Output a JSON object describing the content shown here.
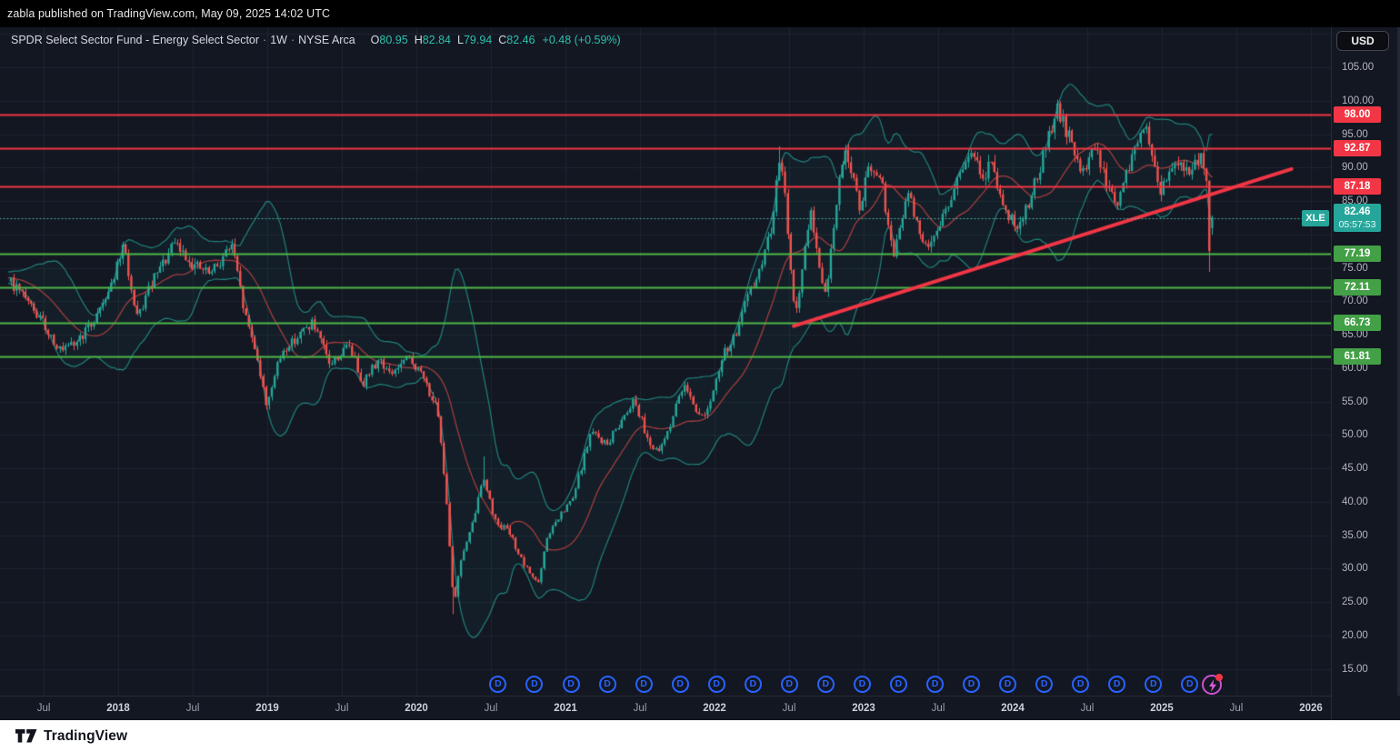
{
  "header": {
    "text": "zabla published on TradingView.com, May 09, 2025 14:02 UTC"
  },
  "legend": {
    "title": "SPDR Select Sector Fund - Energy Select Sector",
    "sep": "·",
    "interval": "1W",
    "exchange": "NYSE Arca",
    "ohlc": [
      {
        "name": "open",
        "k": "O",
        "v": "80.95"
      },
      {
        "name": "high",
        "k": "H",
        "v": "82.84"
      },
      {
        "name": "low",
        "k": "L",
        "v": "79.94"
      },
      {
        "name": "close",
        "k": "C",
        "v": "82.46"
      }
    ],
    "change": "+0.48 (+0.59%)"
  },
  "price_axis": {
    "currency": "USD",
    "ticks": [
      105,
      100,
      95,
      90,
      85,
      75,
      70,
      65,
      60,
      55,
      50,
      45,
      40,
      35,
      30,
      25,
      20,
      15
    ],
    "levels": [
      {
        "value": "98.00",
        "num": 98.0,
        "kind": "resistance"
      },
      {
        "value": "92.87",
        "num": 92.87,
        "kind": "resistance"
      },
      {
        "value": "87.18",
        "num": 87.18,
        "kind": "resistance"
      },
      {
        "value": "77.19",
        "num": 77.19,
        "kind": "support"
      },
      {
        "value": "72.11",
        "num": 72.11,
        "kind": "support"
      },
      {
        "value": "66.73",
        "num": 66.73,
        "kind": "support"
      },
      {
        "value": "61.81",
        "num": 61.81,
        "kind": "support"
      }
    ],
    "last": {
      "symbol": "XLE",
      "price": "82.46",
      "countdown": "05:57:53"
    }
  },
  "time_axis": {
    "labels": [
      {
        "t": 2017.5,
        "label": "Jul"
      },
      {
        "t": 2018.0,
        "label": "2018"
      },
      {
        "t": 2018.5,
        "label": "Jul"
      },
      {
        "t": 2019.0,
        "label": "2019"
      },
      {
        "t": 2019.5,
        "label": "Jul"
      },
      {
        "t": 2020.0,
        "label": "2020"
      },
      {
        "t": 2020.5,
        "label": "Jul"
      },
      {
        "t": 2021.0,
        "label": "2021"
      },
      {
        "t": 2021.5,
        "label": "Jul"
      },
      {
        "t": 2022.0,
        "label": "2022"
      },
      {
        "t": 2022.5,
        "label": "Jul"
      },
      {
        "t": 2023.0,
        "label": "2023"
      },
      {
        "t": 2023.5,
        "label": "Jul"
      },
      {
        "t": 2024.0,
        "label": "2024"
      },
      {
        "t": 2024.5,
        "label": "Jul"
      },
      {
        "t": 2025.0,
        "label": "2025"
      },
      {
        "t": 2025.5,
        "label": "Jul"
      },
      {
        "t": 2026.0,
        "label": "2026"
      }
    ]
  },
  "footer": {
    "brand": "TradingView"
  },
  "colors": {
    "up": "#26a69a",
    "down": "#ef5350",
    "resistance": "#f23645",
    "support": "#4fb748",
    "chip_resistance": "#f23645",
    "chip_support": "#43a047",
    "chip_last": "#26a69a",
    "trendline": "#f23645",
    "bb_band": "rgba(38,166,154,0.75)",
    "bb_fill": "rgba(38,166,154,0.055)",
    "bb_basis": "rgba(178,64,64,0.9)",
    "last_price_line": "rgba(86,204,190,0.9)",
    "grid": "rgba(42,46,57,0.55)",
    "dividend": "#2962ff",
    "flash": "#cf4fd4"
  },
  "chart_data": {
    "type": "candlestick",
    "symbol": "XLE",
    "title": "SPDR Select Sector Fund - Energy Select Sector",
    "interval": "1W",
    "exchange": "NYSE Arca",
    "currency": "USD",
    "last_candle": {
      "o": 80.95,
      "h": 82.84,
      "l": 79.94,
      "c": 82.46,
      "change": 0.48,
      "change_pct": 0.59
    },
    "xlim_years": [
      2017.207,
      2026.134
    ],
    "ylim": [
      11,
      111
    ],
    "y_tick_step": 5,
    "grid": true,
    "weeks": 420,
    "t_start": 2017.28,
    "price_path_keyframes": [
      [
        2016.9,
        74.0
      ],
      [
        2017.28,
        72.8
      ],
      [
        2017.4,
        69.5
      ],
      [
        2017.5,
        66.5
      ],
      [
        2017.62,
        62.3
      ],
      [
        2017.7,
        63.5
      ],
      [
        2017.82,
        66.5
      ],
      [
        2017.95,
        72.5
      ],
      [
        2018.04,
        78.3
      ],
      [
        2018.12,
        67.0
      ],
      [
        2018.22,
        72.5
      ],
      [
        2018.38,
        78.6
      ],
      [
        2018.5,
        75.5
      ],
      [
        2018.62,
        74.0
      ],
      [
        2018.76,
        78.5
      ],
      [
        2018.85,
        68.0
      ],
      [
        2018.93,
        62.0
      ],
      [
        2018.99,
        54.5
      ],
      [
        2019.1,
        62.5
      ],
      [
        2019.3,
        66.8
      ],
      [
        2019.42,
        60.5
      ],
      [
        2019.55,
        63.5
      ],
      [
        2019.64,
        57.8
      ],
      [
        2019.75,
        61.5
      ],
      [
        2019.82,
        59.0
      ],
      [
        2019.95,
        61.5
      ],
      [
        2020.05,
        58.5
      ],
      [
        2020.14,
        53.5
      ],
      [
        2020.2,
        41.0
      ],
      [
        2020.25,
        24.5
      ],
      [
        2020.3,
        31.5
      ],
      [
        2020.37,
        36.0
      ],
      [
        2020.45,
        44.0
      ],
      [
        2020.52,
        37.5
      ],
      [
        2020.62,
        35.5
      ],
      [
        2020.72,
        30.5
      ],
      [
        2020.82,
        27.8
      ],
      [
        2020.88,
        35.0
      ],
      [
        2020.97,
        38.0
      ],
      [
        2021.05,
        40.5
      ],
      [
        2021.17,
        50.5
      ],
      [
        2021.28,
        48.5
      ],
      [
        2021.38,
        52.5
      ],
      [
        2021.46,
        55.5
      ],
      [
        2021.55,
        49.5
      ],
      [
        2021.62,
        47.0
      ],
      [
        2021.7,
        51.5
      ],
      [
        2021.8,
        58.0
      ],
      [
        2021.9,
        52.5
      ],
      [
        2021.97,
        54.5
      ],
      [
        2022.06,
        62.0
      ],
      [
        2022.15,
        65.5
      ],
      [
        2022.22,
        70.5
      ],
      [
        2022.3,
        74.5
      ],
      [
        2022.37,
        80.0
      ],
      [
        2022.44,
        91.5
      ],
      [
        2022.48,
        84.0
      ],
      [
        2022.54,
        67.0
      ],
      [
        2022.6,
        76.5
      ],
      [
        2022.65,
        83.5
      ],
      [
        2022.7,
        75.5
      ],
      [
        2022.74,
        70.5
      ],
      [
        2022.8,
        81.0
      ],
      [
        2022.87,
        93.5
      ],
      [
        2022.92,
        89.0
      ],
      [
        2022.97,
        84.0
      ],
      [
        2023.04,
        90.0
      ],
      [
        2023.12,
        87.5
      ],
      [
        2023.2,
        76.5
      ],
      [
        2023.3,
        86.5
      ],
      [
        2023.4,
        77.8
      ],
      [
        2023.5,
        81.0
      ],
      [
        2023.6,
        86.5
      ],
      [
        2023.72,
        92.5
      ],
      [
        2023.8,
        88.0
      ],
      [
        2023.85,
        91.0
      ],
      [
        2023.95,
        83.5
      ],
      [
        2024.02,
        81.0
      ],
      [
        2024.12,
        85.5
      ],
      [
        2024.22,
        93.0
      ],
      [
        2024.3,
        98.5
      ],
      [
        2024.38,
        94.5
      ],
      [
        2024.46,
        88.5
      ],
      [
        2024.54,
        94.0
      ],
      [
        2024.62,
        88.0
      ],
      [
        2024.7,
        84.5
      ],
      [
        2024.8,
        91.5
      ],
      [
        2024.88,
        97.0
      ],
      [
        2024.94,
        90.5
      ],
      [
        2024.99,
        86.5
      ],
      [
        2025.05,
        90.0
      ],
      [
        2025.12,
        91.5
      ],
      [
        2025.19,
        89.0
      ],
      [
        2025.26,
        92.0
      ],
      [
        2025.298,
        89.0
      ],
      [
        2025.317,
        77.8
      ],
      [
        2025.337,
        82.46
      ]
    ],
    "wick_overrides": [
      {
        "t": 2018.99,
        "low": 53.8
      },
      {
        "t": 2020.25,
        "low": 23.2
      },
      {
        "t": 2020.45,
        "high": 46.8
      },
      {
        "t": 2022.44,
        "high": 93.2
      },
      {
        "t": 2024.3,
        "high": 99.6
      },
      {
        "t": 2025.317,
        "low": 74.4
      }
    ],
    "indicator": {
      "name": "Bollinger Bands",
      "length": 20,
      "mult": 2
    },
    "horizontal_levels": {
      "resistance": [
        98.0,
        92.87,
        87.18
      ],
      "support": [
        77.19,
        72.11,
        66.73,
        61.81
      ]
    },
    "last_price_line": 82.46,
    "trendline": {
      "from": {
        "t": 2022.53,
        "price": 66.3
      },
      "to": {
        "t": 2025.87,
        "price": 89.8
      }
    },
    "dividends": {
      "label": "D",
      "first_t": 2020.548,
      "interval_t": 0.2442,
      "count": 20
    }
  }
}
